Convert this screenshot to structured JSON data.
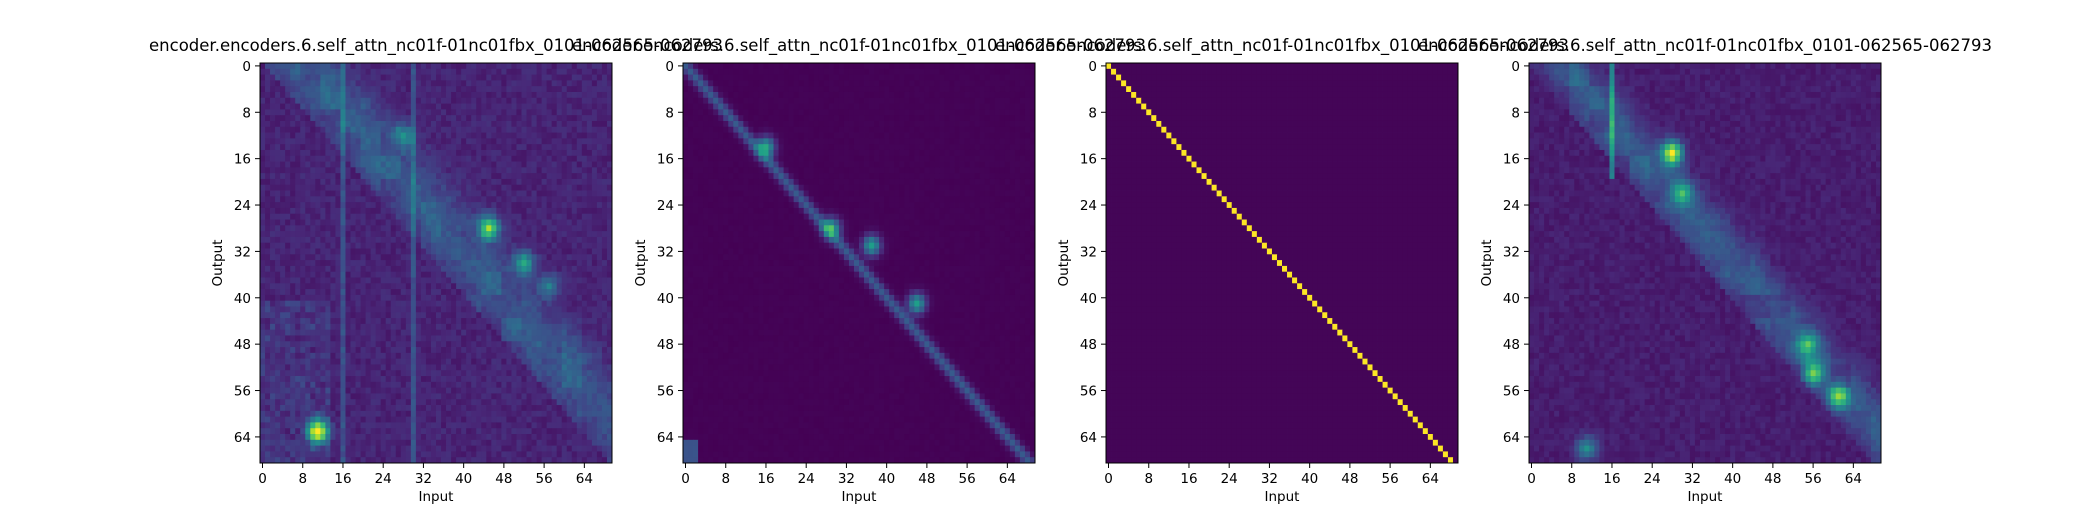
{
  "chart_data": [
    {
      "type": "heatmap",
      "title": "encoder.encoders.6.self_attn_nc01f-01nc01fbx_0101-062565-062793",
      "xlabel": "Input",
      "ylabel": "Output",
      "xticks": [
        0,
        8,
        16,
        24,
        32,
        40,
        48,
        56,
        64
      ],
      "yticks": [
        0,
        8,
        16,
        24,
        32,
        40,
        48,
        56,
        64
      ],
      "n_input": 70,
      "n_output": 69,
      "colormap": "viridis",
      "pattern": "diffuse-upper-diagonal"
    },
    {
      "type": "heatmap",
      "title": "encoder.encoders.6.self_attn_nc01f-01nc01fbx_0101-062565-062793",
      "xlabel": "Input",
      "ylabel": "Output",
      "xticks": [
        0,
        8,
        16,
        24,
        32,
        40,
        48,
        56,
        64
      ],
      "yticks": [
        0,
        8,
        16,
        24,
        32,
        40,
        48,
        56,
        64
      ],
      "n_input": 70,
      "n_output": 69,
      "colormap": "viridis",
      "pattern": "soft-diagonal"
    },
    {
      "type": "heatmap",
      "title": "encoder.encoders.6.self_attn_nc01f-01nc01fbx_0101-062565-062793",
      "xlabel": "Input",
      "ylabel": "Output",
      "xticks": [
        0,
        8,
        16,
        24,
        32,
        40,
        48,
        56,
        64
      ],
      "yticks": [
        0,
        8,
        16,
        24,
        32,
        40,
        48,
        56,
        64
      ],
      "n_input": 70,
      "n_output": 69,
      "colormap": "viridis",
      "pattern": "sharp-diagonal"
    },
    {
      "type": "heatmap",
      "title": "encoder.encoders.6.self_attn_nc01f-01nc01fbx_0101-062565-062793",
      "xlabel": "Input",
      "ylabel": "Output",
      "xticks": [
        0,
        8,
        16,
        24,
        32,
        40,
        48,
        56,
        64
      ],
      "yticks": [
        0,
        8,
        16,
        24,
        32,
        40,
        48,
        56,
        64
      ],
      "n_input": 70,
      "n_output": 69,
      "colormap": "viridis",
      "pattern": "band-upper-diagonal"
    }
  ]
}
